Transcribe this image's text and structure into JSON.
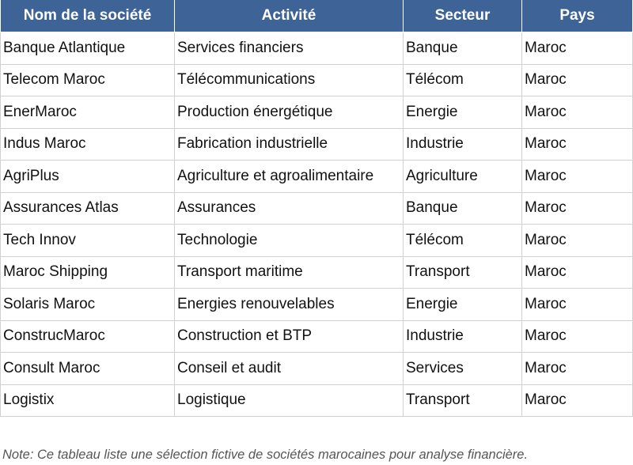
{
  "table": {
    "headers": [
      "Nom de la société",
      "Activité",
      "Secteur",
      "Pays"
    ],
    "rows": [
      [
        "Banque Atlantique",
        "Services financiers",
        "Banque",
        "Maroc"
      ],
      [
        "Telecom Maroc",
        "Télécommunications",
        "Télécom",
        "Maroc"
      ],
      [
        "EnerMaroc",
        "Production énergétique",
        "Energie",
        "Maroc"
      ],
      [
        "Indus Maroc",
        "Fabrication industrielle",
        "Industrie",
        "Maroc"
      ],
      [
        "AgriPlus",
        "Agriculture et agroalimentaire",
        "Agriculture",
        "Maroc"
      ],
      [
        "Assurances Atlas",
        "Assurances",
        "Banque",
        "Maroc"
      ],
      [
        "Tech Innov",
        "Technologie",
        "Télécom",
        "Maroc"
      ],
      [
        "Maroc Shipping",
        "Transport maritime",
        "Transport",
        "Maroc"
      ],
      [
        "Solaris Maroc",
        "Energies renouvelables",
        "Energie",
        "Maroc"
      ],
      [
        "ConstrucMaroc",
        "Construction et BTP",
        "Industrie",
        "Maroc"
      ],
      [
        "Consult Maroc",
        "Conseil et audit",
        "Services",
        "Maroc"
      ],
      [
        "Logistix",
        "Logistique",
        "Transport",
        "Maroc"
      ]
    ]
  },
  "footnote": "Note: Ce tableau liste une sélection fictive de sociétés marocaines pour analyse financière.",
  "colors": {
    "header_bg": "#3e6397",
    "header_text": "#ffffff",
    "grid": "#d0d0d0",
    "footnote_text": "#555555"
  }
}
